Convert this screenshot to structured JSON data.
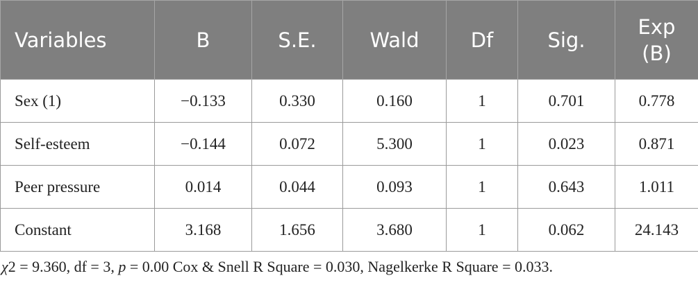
{
  "table": {
    "header": [
      "Variables",
      "B",
      "S.E.",
      "Wald",
      "Df",
      "Sig.",
      "Exp (B)"
    ],
    "rows": [
      [
        "Sex (1)",
        "−0.133",
        "0.330",
        "0.160",
        "1",
        "0.701",
        "0.778"
      ],
      [
        "Self-esteem",
        "−0.144",
        "0.072",
        "5.300",
        "1",
        "0.023",
        "0.871"
      ],
      [
        "Peer pressure",
        "0.014",
        "0.044",
        "0.093",
        "1",
        "0.643",
        "1.011"
      ],
      [
        "Constant",
        "3.168",
        "1.656",
        "3.680",
        "1",
        "0.062",
        "24.143"
      ]
    ]
  },
  "footnote": [
    {
      "text": "χ",
      "italic": true
    },
    {
      "text": "2 = 9.360, df = 3, ",
      "italic": false
    },
    {
      "text": "p",
      "italic": true
    },
    {
      "text": " = 0.00 Cox & Snell R Square = 0.030, Nagelkerke R Square = 0.033.",
      "italic": false
    }
  ]
}
